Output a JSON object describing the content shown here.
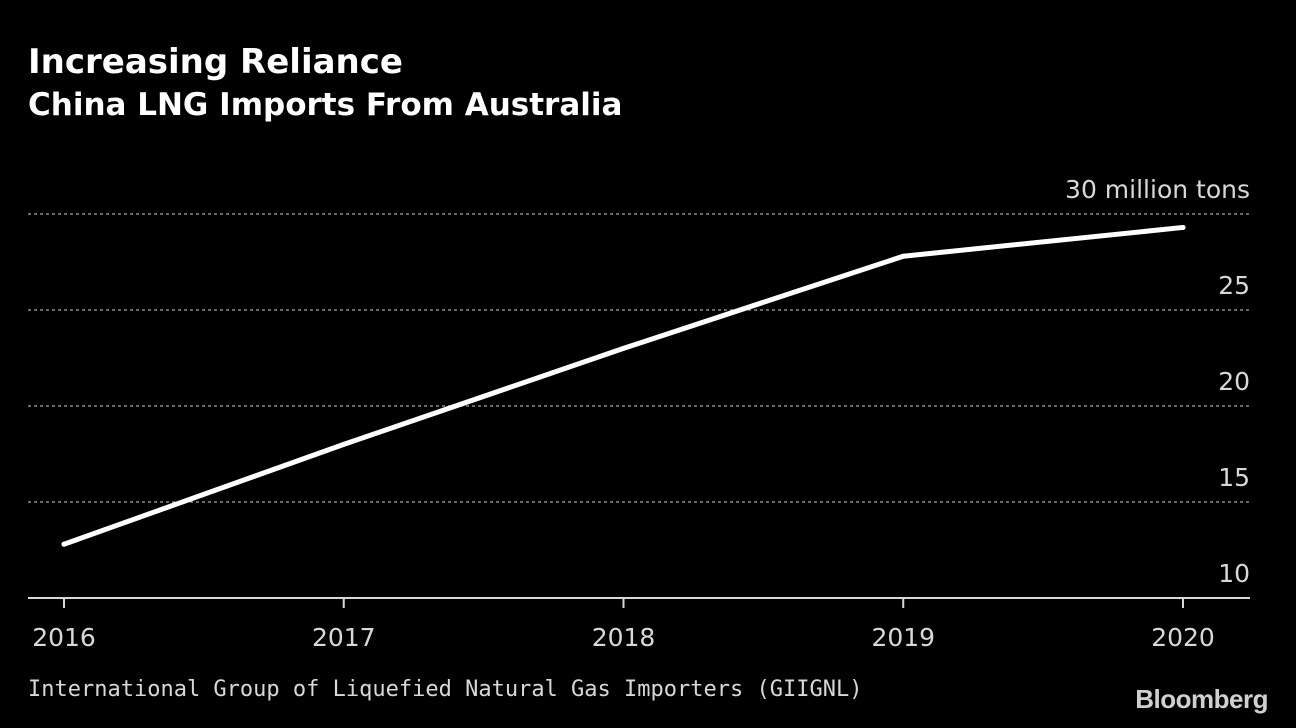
{
  "chart_data": {
    "type": "line",
    "title": "Increasing Reliance",
    "subtitle": "China LNG Imports From Australia",
    "x": [
      "2016",
      "2017",
      "2018",
      "2019",
      "2020"
    ],
    "series": [
      {
        "name": "China LNG imports from Australia",
        "values": [
          12.8,
          18.0,
          23.0,
          27.8,
          29.3
        ]
      }
    ],
    "ylim": [
      10,
      30
    ],
    "yticks": [
      10,
      15,
      20,
      25,
      30
    ],
    "ytick_labels": [
      "10",
      "15",
      "20",
      "25",
      "30 million tons"
    ],
    "ylabel": "",
    "xlabel": "",
    "grid": true,
    "source": "International Group of Liquefied Natural Gas Importers (GIIGNL)",
    "brand": "Bloomberg",
    "colors": {
      "background": "#000000",
      "line": "#ffffff",
      "grid": "#8a8a8a",
      "axis": "#d8d8d8",
      "text": "#ffffff"
    }
  }
}
